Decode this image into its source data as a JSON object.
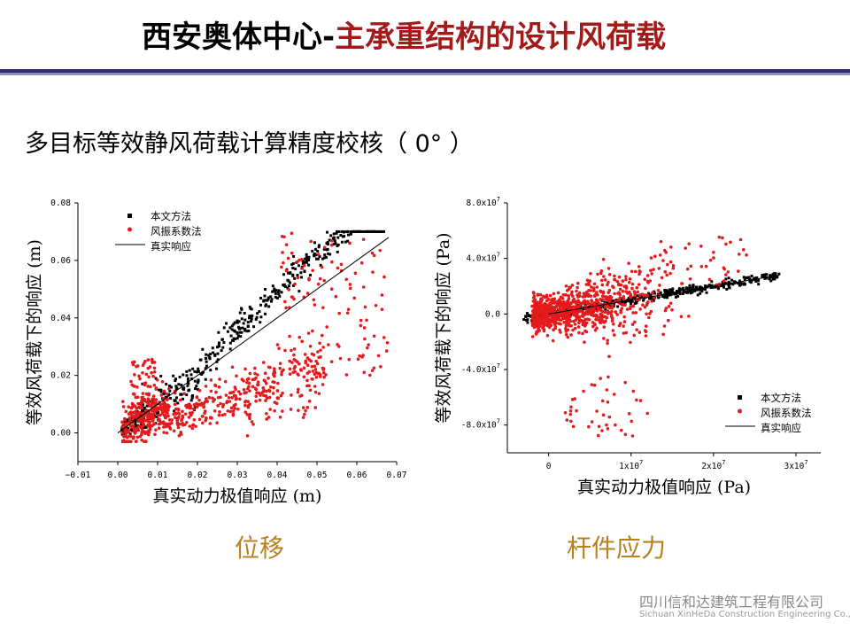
{
  "header": {
    "title_main": "西安奥体中心-",
    "title_sub": "主承重结构的设计风荷载"
  },
  "subtitle": "多目标等效静风荷载计算精度校核（ 0° ）",
  "colors": {
    "method_series": "#000000",
    "vibration_series": "#e41a1c",
    "reference_line": "#000000",
    "caption": "#b7811f",
    "title_accent": "#a31a1a",
    "header_rule": "#2b2f6b"
  },
  "captions": {
    "left": "位移",
    "right": "杆件应力"
  },
  "footer": {
    "company_cn": "四川信和达建筑工程有限公司",
    "company_en": "Sichuan XinHeDa Construction Engineering Co., Ltd"
  },
  "chart_data": [
    {
      "type": "scatter",
      "ylabel": "等效风荷载下的响应 (m)",
      "xlabel": "真实动力极值响应 (m)",
      "xlim": [
        -0.01,
        0.07
      ],
      "ylim": [
        -0.01,
        0.08
      ],
      "xticks": [
        -0.01,
        0.0,
        0.01,
        0.02,
        0.03,
        0.04,
        0.05,
        0.06,
        0.07
      ],
      "xtick_labels": [
        "−0.01",
        "0.00",
        "0.01",
        "0.02",
        "0.03",
        "0.04",
        "0.05",
        "0.06",
        "0.07"
      ],
      "yticks": [
        0.0,
        0.02,
        0.04,
        0.06,
        0.08
      ],
      "ytick_labels": [
        "0.00",
        "0.02",
        "0.04",
        "0.06",
        "0.08"
      ],
      "legend_position": "top-left",
      "series": [
        {
          "name": "本文方法",
          "marker": "square",
          "trend": "y ≈ x, tight band above line (0.018 ≤ x ≤ 0.067)",
          "points": [
            [
              0.002,
              0.003
            ],
            [
              0.005,
              0.006
            ],
            [
              0.01,
              0.011
            ],
            [
              0.015,
              0.014
            ],
            [
              0.02,
              0.022
            ],
            [
              0.025,
              0.03
            ],
            [
              0.03,
              0.038
            ],
            [
              0.035,
              0.048
            ],
            [
              0.04,
              0.055
            ],
            [
              0.045,
              0.058
            ],
            [
              0.05,
              0.062
            ],
            [
              0.055,
              0.064
            ],
            [
              0.06,
              0.066
            ],
            [
              0.066,
              0.069
            ]
          ]
        },
        {
          "name": "风振系数法",
          "marker": "diamond",
          "trend": "scattered mostly below y = x",
          "points": [
            [
              0.002,
              0.001
            ],
            [
              0.003,
              0.025
            ],
            [
              0.008,
              0.02
            ],
            [
              0.01,
              0.006
            ],
            [
              0.015,
              0.01
            ],
            [
              0.02,
              0.014
            ],
            [
              0.025,
              0.008
            ],
            [
              0.03,
              0.016
            ],
            [
              0.035,
              0.028
            ],
            [
              0.04,
              0.015
            ],
            [
              0.045,
              0.03
            ],
            [
              0.05,
              0.045
            ],
            [
              0.058,
              0.025
            ],
            [
              0.067,
              0.071
            ]
          ]
        },
        {
          "name": "真实响应",
          "type": "line",
          "points": [
            [
              0.0,
              0.0
            ],
            [
              0.068,
              0.068
            ]
          ]
        }
      ]
    },
    {
      "type": "scatter",
      "ylabel": "等效风荷载下的响应 (Pa)",
      "xlabel": "真实动力极值响应 (Pa)",
      "xlim": [
        -5000000,
        33000000
      ],
      "ylim": [
        -100000000,
        80000000
      ],
      "xticks": [
        0,
        10000000,
        20000000,
        30000000
      ],
      "xtick_labels": [
        {
          "base": "0",
          "exp": ""
        },
        {
          "base": "1x10",
          "exp": "7"
        },
        {
          "base": "2x10",
          "exp": "7"
        },
        {
          "base": "3x10",
          "exp": "7"
        }
      ],
      "yticks": [
        80000000,
        40000000,
        0,
        -40000000,
        -80000000
      ],
      "ytick_labels": [
        {
          "base": "8.0x10",
          "exp": "7"
        },
        {
          "base": "4.0x10",
          "exp": "7"
        },
        {
          "base": "0.0",
          "exp": ""
        },
        {
          "base": "-4.0x10",
          "exp": "7"
        },
        {
          "base": "-8.0x10",
          "exp": "7"
        }
      ],
      "legend_position": "bottom-right",
      "series": [
        {
          "name": "本文方法",
          "marker": "square",
          "trend": "y ≈ x, narrow band",
          "points": [
            [
              -3000000,
              -1500000
            ],
            [
              0,
              0
            ],
            [
              5000000,
              4000000
            ],
            [
              10000000,
              9000000
            ],
            [
              15000000,
              15000000
            ],
            [
              20000000,
              20000000
            ],
            [
              25000000,
              25000000
            ],
            [
              28000000,
              30000000
            ]
          ]
        },
        {
          "name": "风振系数法",
          "marker": "diamond",
          "trend": "wide dispersion around y = x",
          "points": [
            [
              -3000000,
              -32000000
            ],
            [
              0,
              5000000
            ],
            [
              3000000,
              -30000000
            ],
            [
              5000000,
              -70000000
            ],
            [
              7000000,
              -85000000
            ],
            [
              10000000,
              40000000
            ],
            [
              12000000,
              -10000000
            ],
            [
              15000000,
              35000000
            ],
            [
              18000000,
              -20000000
            ],
            [
              20000000,
              55000000
            ],
            [
              22000000,
              50000000
            ],
            [
              24000000,
              30000000
            ]
          ]
        },
        {
          "name": "真实响应",
          "type": "line",
          "points": [
            [
              0,
              0
            ],
            [
              28000000,
              28000000
            ]
          ]
        }
      ]
    }
  ]
}
